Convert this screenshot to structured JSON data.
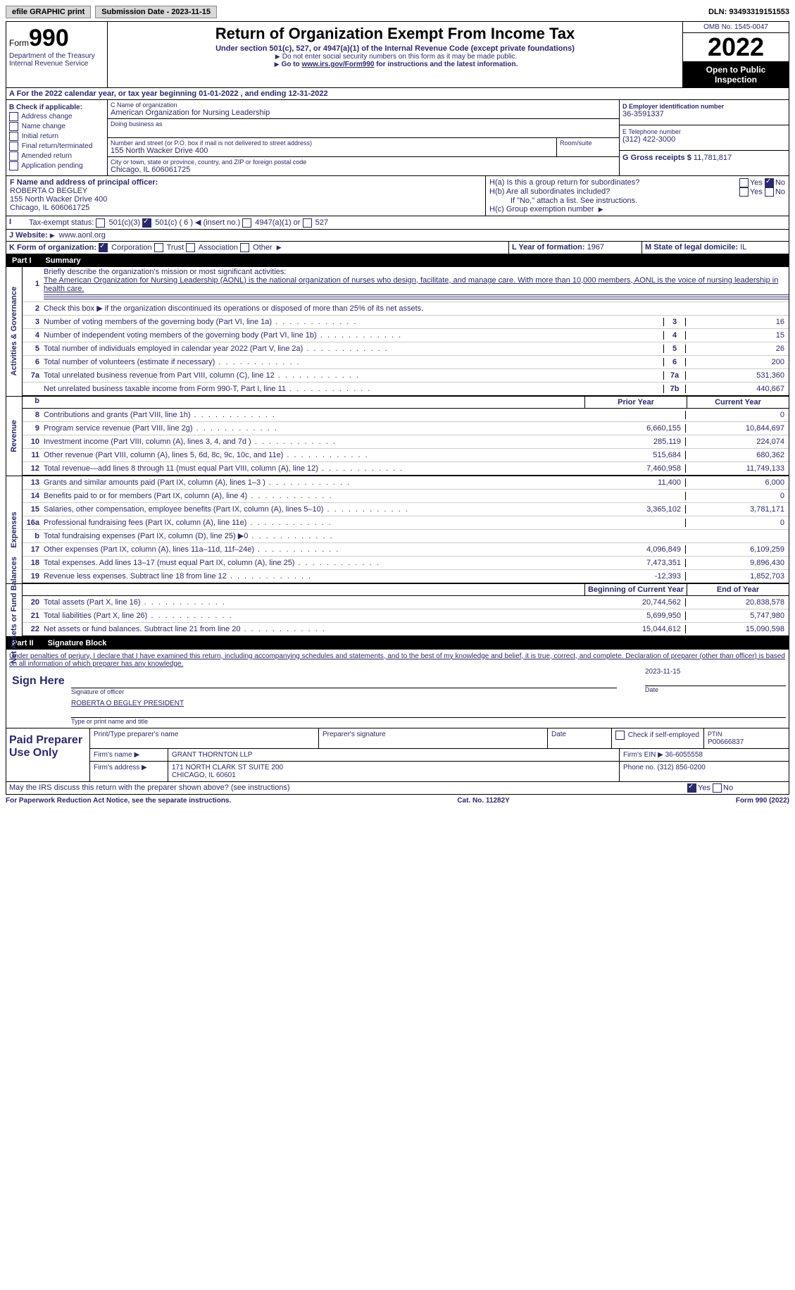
{
  "topbar": {
    "efile": "efile GRAPHIC print",
    "submission": "Submission Date - 2023-11-15",
    "dln": "DLN: 93493319151553"
  },
  "header": {
    "form_prefix": "Form",
    "form_no": "990",
    "dept": "Department of the Treasury Internal Revenue Service",
    "title": "Return of Organization Exempt From Income Tax",
    "sub": "Under section 501(c), 527, or 4947(a)(1) of the Internal Revenue Code (except private foundations)",
    "note1": "Do not enter social security numbers on this form as it may be made public.",
    "note2_pre": "Go to ",
    "note2_link": "www.irs.gov/Form990",
    "note2_post": " for instructions and the latest information.",
    "omb": "OMB No. 1545-0047",
    "year": "2022",
    "open": "Open to Public Inspection"
  },
  "section_a": "A For the 2022 calendar year, or tax year beginning 01-01-2022   , and ending 12-31-2022",
  "col_b": {
    "title": "B Check if applicable:",
    "items": [
      "Address change",
      "Name change",
      "Initial return",
      "Final return/terminated",
      "Amended return",
      "Application pending"
    ]
  },
  "col_c": {
    "name_label": "C Name of organization",
    "name": "American Organization for Nursing Leadership",
    "dba_label": "Doing business as",
    "street_label": "Number and street (or P.O. box if mail is not delivered to street address)",
    "room_label": "Room/suite",
    "street": "155 North Wacker Drive 400",
    "city_label": "City or town, state or province, country, and ZIP or foreign postal code",
    "city": "Chicago, IL  606061725"
  },
  "col_d": {
    "ein_label": "D Employer identification number",
    "ein": "36-3591337",
    "phone_label": "E Telephone number",
    "phone": "(312) 422-3000",
    "gross_label": "G Gross receipts $",
    "gross": "11,781,817"
  },
  "row_f": {
    "label": "F Name and address of principal officer:",
    "name": "ROBERTA O BEGLEY",
    "addr1": "155 North Wacker Drive 400",
    "addr2": "Chicago, IL  606061725"
  },
  "row_h": {
    "ha": "H(a)  Is this a group return for subordinates?",
    "hb": "H(b)  Are all subordinates included?",
    "hb_note": "If \"No,\" attach a list. See instructions.",
    "hc": "H(c)  Group exemption number"
  },
  "row_i": {
    "label": "Tax-exempt status:",
    "opts": [
      "501(c)(3)",
      "501(c) ( 6 ) ◀ (insert no.)",
      "4947(a)(1) or",
      "527"
    ]
  },
  "row_j": {
    "label": "J  Website:",
    "val": "www.aonl.org"
  },
  "row_k": {
    "label": "K Form of organization:",
    "opts": [
      "Corporation",
      "Trust",
      "Association",
      "Other"
    ]
  },
  "row_l": {
    "label": "L Year of formation:",
    "val": "1967"
  },
  "row_m": {
    "label": "M State of legal domicile:",
    "val": "IL"
  },
  "part1": {
    "num": "Part I",
    "title": "Summary"
  },
  "summary": {
    "l1_label": "Briefly describe the organization's mission or most significant activities:",
    "l1_text": "The American Organization for Nursing Leadership (AONL) is the national organization of nurses who design, facilitate, and manage care. With more than 10,000 members, AONL is the voice of nursing leadership in health care.",
    "l2": "Check this box ▶  if the organization discontinued its operations or disposed of more than 25% of its net assets.",
    "lines_single": [
      {
        "n": "3",
        "d": "Number of voting members of the governing body (Part VI, line 1a)",
        "box": "3",
        "v": "16"
      },
      {
        "n": "4",
        "d": "Number of independent voting members of the governing body (Part VI, line 1b)",
        "box": "4",
        "v": "15"
      },
      {
        "n": "5",
        "d": "Total number of individuals employed in calendar year 2022 (Part V, line 2a)",
        "box": "5",
        "v": "26"
      },
      {
        "n": "6",
        "d": "Total number of volunteers (estimate if necessary)",
        "box": "6",
        "v": "200"
      },
      {
        "n": "7a",
        "d": "Total unrelated business revenue from Part VIII, column (C), line 12",
        "box": "7a",
        "v": "531,360"
      },
      {
        "n": "",
        "d": "Net unrelated business taxable income from Form 990-T, Part I, line 11",
        "box": "7b",
        "v": "440,667"
      }
    ],
    "col_headers": {
      "b": "b",
      "prior": "Prior Year",
      "current": "Current Year"
    },
    "revenue": [
      {
        "n": "8",
        "d": "Contributions and grants (Part VIII, line 1h)",
        "p": "",
        "c": "0"
      },
      {
        "n": "9",
        "d": "Program service revenue (Part VIII, line 2g)",
        "p": "6,660,155",
        "c": "10,844,697"
      },
      {
        "n": "10",
        "d": "Investment income (Part VIII, column (A), lines 3, 4, and 7d )",
        "p": "285,119",
        "c": "224,074"
      },
      {
        "n": "11",
        "d": "Other revenue (Part VIII, column (A), lines 5, 6d, 8c, 9c, 10c, and 11e)",
        "p": "515,684",
        "c": "680,362"
      },
      {
        "n": "12",
        "d": "Total revenue—add lines 8 through 11 (must equal Part VIII, column (A), line 12)",
        "p": "7,460,958",
        "c": "11,749,133"
      }
    ],
    "expenses": [
      {
        "n": "13",
        "d": "Grants and similar amounts paid (Part IX, column (A), lines 1–3 )",
        "p": "11,400",
        "c": "6,000"
      },
      {
        "n": "14",
        "d": "Benefits paid to or for members (Part IX, column (A), line 4)",
        "p": "",
        "c": "0"
      },
      {
        "n": "15",
        "d": "Salaries, other compensation, employee benefits (Part IX, column (A), lines 5–10)",
        "p": "3,365,102",
        "c": "3,781,171"
      },
      {
        "n": "16a",
        "d": "Professional fundraising fees (Part IX, column (A), line 11e)",
        "p": "",
        "c": "0"
      },
      {
        "n": "b",
        "d": "Total fundraising expenses (Part IX, column (D), line 25) ▶0",
        "p": "shade",
        "c": "shade"
      },
      {
        "n": "17",
        "d": "Other expenses (Part IX, column (A), lines 11a–11d, 11f–24e)",
        "p": "4,096,849",
        "c": "6,109,259"
      },
      {
        "n": "18",
        "d": "Total expenses. Add lines 13–17 (must equal Part IX, column (A), line 25)",
        "p": "7,473,351",
        "c": "9,896,430"
      },
      {
        "n": "19",
        "d": "Revenue less expenses. Subtract line 18 from line 12",
        "p": "-12,393",
        "c": "1,852,703"
      }
    ],
    "net_headers": {
      "begin": "Beginning of Current Year",
      "end": "End of Year"
    },
    "net": [
      {
        "n": "20",
        "d": "Total assets (Part X, line 16)",
        "p": "20,744,562",
        "c": "20,838,578"
      },
      {
        "n": "21",
        "d": "Total liabilities (Part X, line 26)",
        "p": "5,699,950",
        "c": "5,747,980"
      },
      {
        "n": "22",
        "d": "Net assets or fund balances. Subtract line 21 from line 20",
        "p": "15,044,612",
        "c": "15,090,598"
      }
    ]
  },
  "side_labels": {
    "ag": "Activities & Governance",
    "rev": "Revenue",
    "exp": "Expenses",
    "net": "Net Assets or Fund Balances"
  },
  "part2": {
    "num": "Part II",
    "title": "Signature Block"
  },
  "sig": {
    "declaration": "Under penalties of perjury, I declare that I have examined this return, including accompanying schedules and statements, and to the best of my knowledge and belief, it is true, correct, and complete. Declaration of preparer (other than officer) is based on all information of which preparer has any knowledge.",
    "sign_here": "Sign Here",
    "sig_officer": "Signature of officer",
    "date": "2023-11-15",
    "date_label": "Date",
    "name": "ROBERTA O BEGLEY PRESIDENT",
    "name_label": "Type or print name and title"
  },
  "preparer": {
    "title": "Paid Preparer Use Only",
    "h_name": "Print/Type preparer's name",
    "h_sig": "Preparer's signature",
    "h_date": "Date",
    "h_check": "Check  if self-employed",
    "h_ptin_label": "PTIN",
    "h_ptin": "P00666837",
    "firm_label": "Firm's name   ▶",
    "firm": "GRANT THORNTON LLP",
    "ein_label": "Firm's EIN ▶",
    "ein": "36-6055558",
    "addr_label": "Firm's address ▶",
    "addr1": "171 NORTH CLARK ST SUITE 200",
    "addr2": "CHICAGO, IL  60601",
    "phone_label": "Phone no.",
    "phone": "(312) 856-0200"
  },
  "discuss": "May the IRS discuss this return with the preparer shown above? (see instructions)",
  "footer": {
    "left": "For Paperwork Reduction Act Notice, see the separate instructions.",
    "mid": "Cat. No. 11282Y",
    "right": "Form 990 (2022)"
  }
}
